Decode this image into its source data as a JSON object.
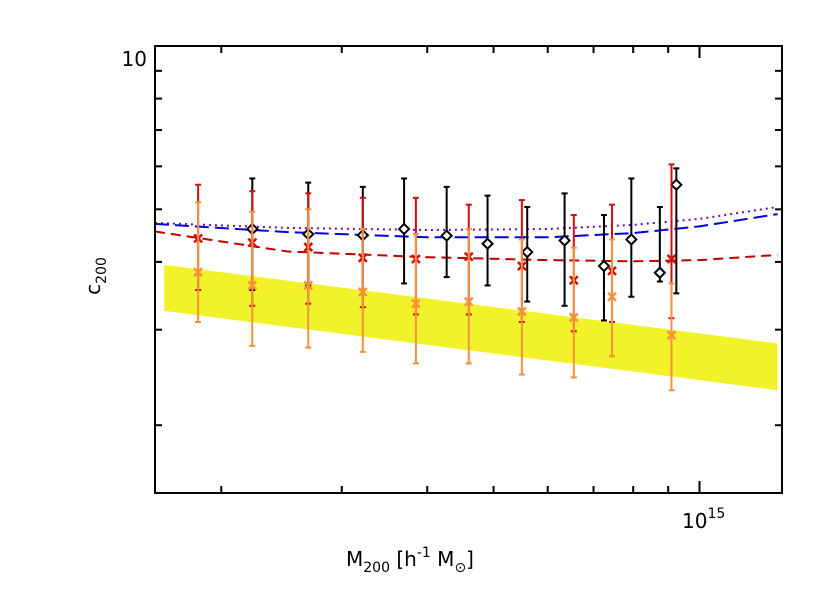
{
  "chart_data": {
    "type": "scatter",
    "title": "",
    "xlabel": {
      "main": "M",
      "sub": "200",
      "rest": " [h",
      "sup": "-1",
      "unit": " M",
      "unit_sub": "⊙",
      "close": "]"
    },
    "ylabel": {
      "main": "c",
      "sub": "200"
    },
    "x_scale": "log",
    "y_scale": "log",
    "xlim": [
      160000000000000.0,
      1320000000000000.0
    ],
    "ylim": [
      1.5,
      10
    ],
    "x_tick_labels": [
      {
        "value": 1000000000000000.0,
        "base": "10",
        "exp": "15"
      }
    ],
    "y_tick_labels": [
      {
        "value": 10,
        "label": "10"
      }
    ],
    "x_minor_ticks": [
      200000000000000.0,
      300000000000000.0,
      400000000000000.0,
      500000000000000.0,
      600000000000000.0,
      700000000000000.0,
      800000000000000.0,
      900000000000000.0
    ],
    "y_minor_ticks": [
      2,
      3,
      4,
      5,
      6,
      7,
      8,
      9
    ],
    "band": {
      "color": "#f2f22a",
      "x": [
        165000000000000.0,
        1300000000000000.0
      ],
      "upper": [
        3.95,
        2.83
      ],
      "lower": [
        3.25,
        2.32
      ]
    },
    "curves": [
      {
        "style": "dotted",
        "color": "#6a0dad",
        "x": [
          160000000000000.0,
          250000000000000.0,
          400000000000000.0,
          600000000000000.0,
          800000000000000.0,
          1000000000000000.0,
          1300000000000000.0
        ],
        "y": [
          4.72,
          4.62,
          4.58,
          4.6,
          4.68,
          4.8,
          5.05
        ]
      },
      {
        "style": "dashed-long",
        "color": "#0000e0",
        "x": [
          160000000000000.0,
          250000000000000.0,
          400000000000000.0,
          600000000000000.0,
          800000000000000.0,
          1000000000000000.0,
          1300000000000000.0
        ],
        "y": [
          4.7,
          4.54,
          4.44,
          4.44,
          4.52,
          4.65,
          4.9
        ]
      },
      {
        "style": "dashed",
        "color": "#c00000",
        "x": [
          160000000000000.0,
          250000000000000.0,
          400000000000000.0,
          600000000000000.0,
          800000000000000.0,
          1000000000000000.0,
          1300000000000000.0
        ],
        "y": [
          4.55,
          4.18,
          4.08,
          4.03,
          4.01,
          4.03,
          4.12
        ]
      }
    ],
    "series": [
      {
        "marker": "diamond",
        "color": "#000000",
        "points": [
          {
            "x": 222000000000000.0,
            "y": 4.6,
            "ylo": 3.55,
            "yhi": 5.7
          },
          {
            "x": 268000000000000.0,
            "y": 4.5,
            "ylo": 3.62,
            "yhi": 5.6
          },
          {
            "x": 322000000000000.0,
            "y": 4.48,
            "ylo": 3.55,
            "yhi": 5.5
          },
          {
            "x": 370000000000000.0,
            "y": 4.6,
            "ylo": 3.65,
            "yhi": 5.7
          },
          {
            "x": 427000000000000.0,
            "y": 4.47,
            "ylo": 3.75,
            "yhi": 5.5
          },
          {
            "x": 490000000000000.0,
            "y": 4.32,
            "ylo": 3.62,
            "yhi": 5.3
          },
          {
            "x": 560000000000000.0,
            "y": 4.17,
            "ylo": 3.38,
            "yhi": 5.05
          },
          {
            "x": 635000000000000.0,
            "y": 4.38,
            "ylo": 3.32,
            "yhi": 5.35
          },
          {
            "x": 725000000000000.0,
            "y": 3.93,
            "ylo": 3.12,
            "yhi": 4.88
          },
          {
            "x": 795000000000000.0,
            "y": 4.4,
            "ylo": 3.45,
            "yhi": 5.7
          },
          {
            "x": 875000000000000.0,
            "y": 3.82,
            "ylo": 3.68,
            "yhi": 5.05
          },
          {
            "x": 925000000000000.0,
            "y": 5.55,
            "ylo": 3.5,
            "yhi": 5.95
          }
        ]
      },
      {
        "marker": "x",
        "color": "#cc1010",
        "points": [
          {
            "x": 185000000000000.0,
            "y": 4.42,
            "ylo": 3.55,
            "yhi": 5.55
          },
          {
            "x": 222000000000000.0,
            "y": 4.34,
            "ylo": 3.32,
            "yhi": 5.4
          },
          {
            "x": 268000000000000.0,
            "y": 4.26,
            "ylo": 3.35,
            "yhi": 5.35
          },
          {
            "x": 322000000000000.0,
            "y": 4.07,
            "ylo": 3.3,
            "yhi": 5.25
          },
          {
            "x": 385000000000000.0,
            "y": 4.05,
            "ylo": 3.2,
            "yhi": 5.25
          },
          {
            "x": 460000000000000.0,
            "y": 4.09,
            "ylo": 3.2,
            "yhi": 5.1
          },
          {
            "x": 550000000000000.0,
            "y": 3.93,
            "ylo": 3.1,
            "yhi": 5.2
          },
          {
            "x": 655000000000000.0,
            "y": 3.7,
            "ylo": 2.98,
            "yhi": 4.88
          },
          {
            "x": 745000000000000.0,
            "y": 3.85,
            "ylo": 3.1,
            "yhi": 5.1
          },
          {
            "x": 910000000000000.0,
            "y": 4.05,
            "ylo": 3.15,
            "yhi": 6.05
          }
        ]
      },
      {
        "marker": "x",
        "color": "#f5913a",
        "points": [
          {
            "x": 185000000000000.0,
            "y": 3.83,
            "ylo": 3.1,
            "yhi": 5.15
          },
          {
            "x": 222000000000000.0,
            "y": 3.62,
            "ylo": 2.8,
            "yhi": 4.95
          },
          {
            "x": 268000000000000.0,
            "y": 3.62,
            "ylo": 2.78,
            "yhi": 5.0
          },
          {
            "x": 322000000000000.0,
            "y": 3.52,
            "ylo": 2.73,
            "yhi": 4.6
          },
          {
            "x": 385000000000000.0,
            "y": 3.35,
            "ylo": 2.6,
            "yhi": 4.5
          },
          {
            "x": 460000000000000.0,
            "y": 3.38,
            "ylo": 2.6,
            "yhi": 4.6
          },
          {
            "x": 550000000000000.0,
            "y": 3.24,
            "ylo": 2.48,
            "yhi": 4.4
          },
          {
            "x": 655000000000000.0,
            "y": 3.16,
            "ylo": 2.45,
            "yhi": 4.25
          },
          {
            "x": 745000000000000.0,
            "y": 3.45,
            "ylo": 2.68,
            "yhi": 4.4
          },
          {
            "x": 910000000000000.0,
            "y": 2.93,
            "ylo": 2.32,
            "yhi": 3.65
          }
        ]
      }
    ]
  }
}
